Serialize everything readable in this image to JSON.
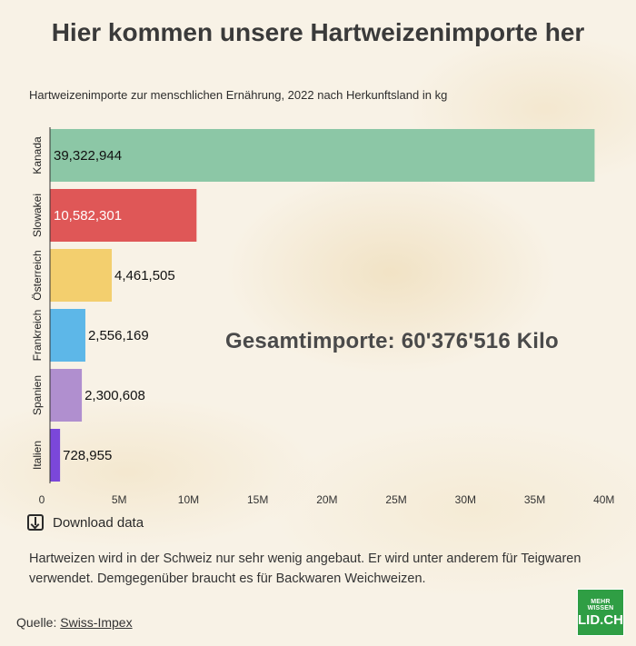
{
  "header": {
    "title": "Hier kommen unsere Hartweizenimporte her",
    "subtitle": "Hartweizenimporte zur menschlichen Ernährung, 2022 nach Herkunftsland in kg"
  },
  "chart_data": {
    "type": "bar",
    "orientation": "horizontal",
    "categories": [
      "Kanada",
      "Slowakei",
      "Österreich",
      "Frankreich",
      "Spanien",
      "Italien"
    ],
    "values": [
      39322944,
      10582301,
      4461505,
      2556169,
      2300608,
      728955
    ],
    "value_labels": [
      "39,322,944",
      "10,582,301",
      "4,461,505",
      "2,556,169",
      "2,300,608",
      "728,955"
    ],
    "colors": [
      "#8cc7a6",
      "#df5757",
      "#f3cf6e",
      "#5db7e8",
      "#b08fcf",
      "#7b47da"
    ],
    "xlim": [
      0,
      41000000
    ],
    "xticks": [
      0,
      5000000,
      10000000,
      15000000,
      20000000,
      25000000,
      30000000,
      35000000,
      40000000
    ],
    "xtick_labels": [
      "0",
      "5M",
      "10M",
      "15M",
      "20M",
      "25M",
      "30M",
      "35M",
      "40M"
    ],
    "grid": false,
    "legend": "none",
    "annotation": "Gesamtimporte: 60'376'516 Kilo"
  },
  "download": {
    "label": "Download data",
    "icon": "download-icon"
  },
  "note": "Hartweizen wird in der Schweiz nur sehr wenig angebaut. Er wird unter anderem für Teigwaren verwendet. Demgegenüber braucht es für Backwaren Weichweizen.",
  "source": {
    "label": "Quelle:",
    "link_text": "Swiss-Impex"
  },
  "logo": {
    "line1": "MEHR WISSEN",
    "line2": "LID.CH",
    "color": "#2f9e44"
  }
}
